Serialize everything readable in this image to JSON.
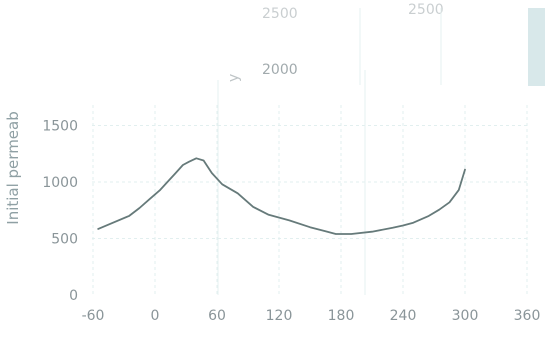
{
  "chart_data": {
    "type": "line",
    "title": "",
    "xlabel": "",
    "ylabel": "Initial permeab",
    "xlim": [
      -60,
      360
    ],
    "ylim": [
      0,
      1800
    ],
    "x_ticks": [
      "-60",
      "0",
      "60",
      "120",
      "180",
      "240",
      "300",
      "360"
    ],
    "y_ticks": [
      "0",
      "500",
      "1000",
      "1500"
    ],
    "ghost_labels": [
      "2500",
      "2500",
      "2000",
      "y"
    ],
    "grid": true,
    "line_color": "#667a7a",
    "grid_color": "#e2efef",
    "series": [
      {
        "x": [
          -55,
          -25,
          -15,
          -5,
          5,
          12,
          20,
          27,
          33,
          40,
          47,
          55,
          65,
          80,
          95,
          110,
          130,
          150,
          165,
          175,
          190,
          210,
          230,
          240,
          250,
          265,
          275,
          285,
          294,
          300
        ],
        "y": [
          585,
          700,
          770,
          850,
          930,
          1000,
          1080,
          1150,
          1180,
          1210,
          1190,
          1080,
          980,
          900,
          780,
          710,
          660,
          600,
          565,
          540,
          540,
          560,
          595,
          615,
          640,
          700,
          755,
          820,
          930,
          1110
        ]
      }
    ]
  }
}
